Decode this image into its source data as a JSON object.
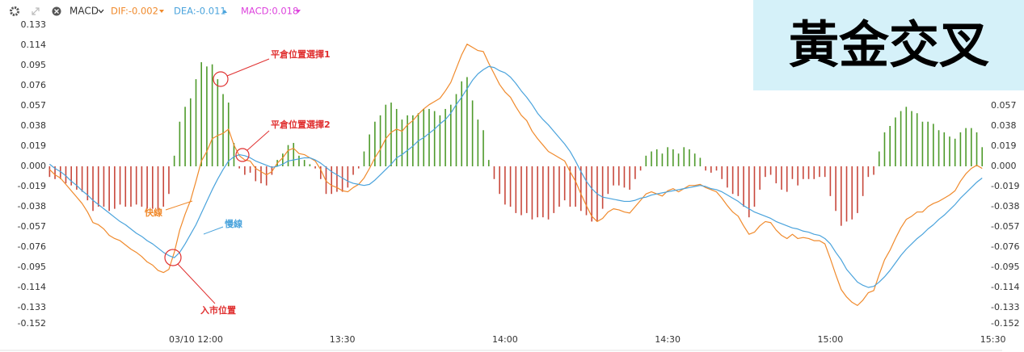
{
  "chart_data": {
    "type": "combo",
    "indicator": "MACD",
    "title": "黃金交叉",
    "annotations": [
      "平倉位置選擇1",
      "平倉位置選擇2",
      "快線",
      "慢線",
      "入市位置"
    ],
    "categories": [
      null,
      null,
      null,
      null,
      null,
      null,
      null,
      null,
      null,
      null,
      null,
      null,
      null,
      null,
      null,
      null,
      null,
      null,
      null,
      null,
      null,
      null,
      null,
      null,
      null,
      null,
      null,
      "03/10 12:00",
      null,
      null,
      null,
      null,
      null,
      null,
      null,
      null,
      null,
      null,
      null,
      null,
      null,
      null,
      null,
      null,
      null,
      null,
      null,
      null,
      null,
      null,
      null,
      null,
      null,
      null,
      "13:30",
      null,
      null,
      null,
      null,
      null,
      null,
      null,
      null,
      null,
      null,
      null,
      null,
      null,
      null,
      null,
      null,
      null,
      null,
      null,
      null,
      null,
      null,
      null,
      null,
      null,
      null,
      null,
      null,
      null,
      "14:00",
      null,
      null,
      null,
      null,
      null,
      null,
      null,
      null,
      null,
      null,
      null,
      null,
      null,
      null,
      null,
      null,
      null,
      null,
      null,
      null,
      null,
      null,
      null,
      null,
      null,
      null,
      null,
      null,
      null,
      "14:30",
      null,
      null,
      null,
      null,
      null,
      null,
      null,
      null,
      null,
      null,
      null,
      null,
      null,
      null,
      null,
      null,
      null,
      null,
      null,
      null,
      null,
      null,
      null,
      null,
      null,
      null,
      null,
      null,
      null,
      "15:00",
      null,
      null,
      null,
      null,
      null,
      null,
      null,
      null,
      null,
      null,
      null,
      null,
      null,
      null,
      null,
      null,
      null,
      null,
      null,
      null,
      null,
      null,
      null,
      null,
      null,
      null,
      null,
      null,
      null,
      "15:30"
    ],
    "series": [
      {
        "name": "DIF:-0.002",
        "type": "line",
        "color": "#f08a2c",
        "values": [
          -0.003,
          -0.008,
          -0.011,
          -0.017,
          -0.023,
          -0.029,
          -0.035,
          -0.043,
          -0.053,
          -0.055,
          -0.059,
          -0.065,
          -0.068,
          -0.07,
          -0.074,
          -0.078,
          -0.081,
          -0.085,
          -0.09,
          -0.093,
          -0.098,
          -0.1,
          -0.097,
          -0.081,
          -0.06,
          -0.045,
          -0.032,
          -0.014,
          0.005,
          0.014,
          0.026,
          0.029,
          0.031,
          0.035,
          0.02,
          0.01,
          0.006,
          0.005,
          -0.002,
          -0.005,
          -0.008,
          -0.005,
          0.003,
          0.008,
          0.015,
          0.017,
          0.012,
          0.011,
          0.008,
          0.005,
          -0.003,
          -0.014,
          -0.018,
          -0.02,
          -0.023,
          -0.024,
          -0.02,
          -0.017,
          -0.011,
          -0.002,
          0.008,
          0.016,
          0.026,
          0.032,
          0.035,
          0.033,
          0.039,
          0.043,
          0.049,
          0.054,
          0.058,
          0.061,
          0.064,
          0.071,
          0.079,
          0.092,
          0.105,
          0.115,
          0.112,
          0.109,
          0.108,
          0.097,
          0.087,
          0.077,
          0.07,
          0.065,
          0.056,
          0.048,
          0.043,
          0.033,
          0.026,
          0.02,
          0.014,
          0.011,
          0.008,
          0.005,
          -0.005,
          -0.014,
          -0.026,
          -0.037,
          -0.047,
          -0.052,
          -0.049,
          -0.043,
          -0.04,
          -0.041,
          -0.043,
          -0.044,
          -0.038,
          -0.032,
          -0.026,
          -0.024,
          -0.026,
          -0.028,
          -0.023,
          -0.021,
          -0.024,
          -0.021,
          -0.018,
          -0.018,
          -0.017,
          -0.02,
          -0.022,
          -0.024,
          -0.03,
          -0.037,
          -0.043,
          -0.047,
          -0.056,
          -0.064,
          -0.062,
          -0.056,
          -0.052,
          -0.053,
          -0.06,
          -0.065,
          -0.068,
          -0.064,
          -0.068,
          -0.067,
          -0.068,
          -0.07,
          -0.07,
          -0.073,
          -0.087,
          -0.102,
          -0.116,
          -0.123,
          -0.128,
          -0.131,
          -0.126,
          -0.119,
          -0.117,
          -0.102,
          -0.088,
          -0.079,
          -0.068,
          -0.058,
          -0.05,
          -0.047,
          -0.043,
          -0.043,
          -0.038,
          -0.035,
          -0.033,
          -0.03,
          -0.027,
          -0.023,
          -0.014,
          -0.007,
          -0.002,
          0.001,
          -0.002,
          null,
          null
        ]
      },
      {
        "name": "DEA:-0.011",
        "type": "line",
        "color": "#4aa3dc",
        "values": [
          0.002,
          -0.002,
          -0.005,
          -0.009,
          -0.014,
          -0.018,
          -0.023,
          -0.027,
          -0.032,
          -0.036,
          -0.04,
          -0.044,
          -0.048,
          -0.052,
          -0.055,
          -0.059,
          -0.063,
          -0.066,
          -0.07,
          -0.073,
          -0.077,
          -0.081,
          -0.084,
          -0.086,
          -0.081,
          -0.073,
          -0.064,
          -0.055,
          -0.044,
          -0.033,
          -0.022,
          -0.012,
          -0.003,
          0.005,
          0.009,
          0.011,
          0.01,
          0.008,
          0.005,
          0.003,
          0.001,
          -0.001,
          0.0,
          0.002,
          0.005,
          0.006,
          0.007,
          0.008,
          0.008,
          0.006,
          0.003,
          -0.001,
          -0.005,
          -0.008,
          -0.011,
          -0.014,
          -0.016,
          -0.017,
          -0.018,
          -0.017,
          -0.013,
          -0.008,
          -0.003,
          0.002,
          0.008,
          0.011,
          0.015,
          0.019,
          0.024,
          0.027,
          0.031,
          0.035,
          0.04,
          0.044,
          0.05,
          0.058,
          0.065,
          0.073,
          0.081,
          0.087,
          0.091,
          0.094,
          0.093,
          0.09,
          0.088,
          0.084,
          0.078,
          0.071,
          0.065,
          0.058,
          0.05,
          0.044,
          0.039,
          0.033,
          0.027,
          0.021,
          0.014,
          0.005,
          -0.005,
          -0.014,
          -0.021,
          -0.026,
          -0.029,
          -0.03,
          -0.031,
          -0.032,
          -0.033,
          -0.033,
          -0.032,
          -0.03,
          -0.029,
          -0.027,
          -0.026,
          -0.025,
          -0.024,
          -0.023,
          -0.022,
          -0.021,
          -0.02,
          -0.019,
          -0.018,
          -0.019,
          -0.021,
          -0.022,
          -0.024,
          -0.027,
          -0.03,
          -0.033,
          -0.037,
          -0.04,
          -0.043,
          -0.045,
          -0.047,
          -0.049,
          -0.052,
          -0.054,
          -0.056,
          -0.058,
          -0.059,
          -0.061,
          -0.062,
          -0.064,
          -0.065,
          -0.068,
          -0.073,
          -0.081,
          -0.088,
          -0.097,
          -0.103,
          -0.109,
          -0.112,
          -0.114,
          -0.113,
          -0.109,
          -0.104,
          -0.098,
          -0.091,
          -0.084,
          -0.078,
          -0.073,
          -0.068,
          -0.064,
          -0.059,
          -0.055,
          -0.05,
          -0.046,
          -0.041,
          -0.036,
          -0.03,
          -0.025,
          -0.02,
          -0.015,
          -0.011,
          null,
          null
        ]
      },
      {
        "name": "MACD:0.018",
        "type": "bar",
        "color": "#dd44dd",
        "positive_color": "#4e9a2b",
        "negative_color": "#c8483c",
        "values": [
          -0.01,
          -0.012,
          -0.012,
          -0.016,
          -0.018,
          -0.022,
          -0.024,
          -0.032,
          -0.042,
          -0.038,
          -0.038,
          -0.042,
          -0.04,
          -0.036,
          -0.038,
          -0.038,
          -0.036,
          -0.038,
          -0.04,
          -0.04,
          -0.042,
          -0.038,
          -0.026,
          0.01,
          0.042,
          0.056,
          0.064,
          0.082,
          0.098,
          0.094,
          0.096,
          0.082,
          0.068,
          0.06,
          0.022,
          -0.002,
          -0.008,
          -0.006,
          -0.014,
          -0.016,
          -0.018,
          -0.008,
          0.006,
          0.012,
          0.02,
          0.022,
          0.01,
          0.006,
          0.002,
          -0.002,
          -0.012,
          -0.026,
          -0.026,
          -0.024,
          -0.024,
          -0.02,
          -0.008,
          -0.002,
          0.014,
          0.03,
          0.042,
          0.048,
          0.058,
          0.06,
          0.054,
          0.044,
          0.048,
          0.048,
          0.05,
          0.054,
          0.054,
          0.052,
          0.048,
          0.054,
          0.058,
          0.068,
          0.08,
          0.084,
          0.062,
          0.044,
          0.034,
          0.006,
          -0.012,
          -0.026,
          -0.036,
          -0.038,
          -0.044,
          -0.046,
          -0.044,
          -0.05,
          -0.048,
          -0.048,
          -0.05,
          -0.044,
          -0.038,
          -0.032,
          -0.038,
          -0.038,
          -0.042,
          -0.046,
          -0.052,
          -0.052,
          -0.04,
          -0.026,
          -0.018,
          -0.018,
          -0.02,
          -0.022,
          -0.012,
          -0.004,
          0.01,
          0.014,
          0.016,
          0.012,
          0.018,
          0.016,
          0.012,
          0.018,
          0.016,
          0.012,
          0.008,
          -0.004,
          -0.006,
          -0.004,
          -0.012,
          -0.02,
          -0.026,
          -0.028,
          -0.038,
          -0.048,
          -0.038,
          -0.022,
          -0.01,
          -0.008,
          -0.016,
          -0.022,
          -0.024,
          -0.012,
          -0.018,
          -0.012,
          -0.012,
          -0.012,
          -0.01,
          -0.01,
          -0.028,
          -0.042,
          -0.056,
          -0.052,
          -0.05,
          -0.044,
          -0.028,
          -0.01,
          -0.008,
          0.014,
          0.032,
          0.038,
          0.046,
          0.052,
          0.056,
          0.052,
          0.05,
          0.042,
          0.042,
          0.04,
          0.034,
          0.032,
          0.028,
          0.026,
          0.032,
          0.036,
          0.036,
          0.032,
          0.018,
          null,
          null
        ]
      }
    ],
    "ylim": [
      -0.152,
      0.133
    ],
    "yticks": [
      0.133,
      0.114,
      0.095,
      0.076,
      0.057,
      0.038,
      0.019,
      {
        "value": 0,
        "label": "0.000"
      },
      -0.019,
      -0.038,
      -0.057,
      -0.076,
      -0.095,
      -0.114,
      -0.133,
      -0.152
    ],
    "y2lim": [
      -0.152,
      0.133
    ],
    "y2ticks": [
      0.057,
      0.038,
      0.019,
      {
        "value": 0,
        "label": "0.000"
      },
      -0.019,
      -0.038,
      -0.057,
      -0.076,
      -0.095,
      -0.114,
      -0.133,
      -0.152
    ],
    "grid": false
  }
}
